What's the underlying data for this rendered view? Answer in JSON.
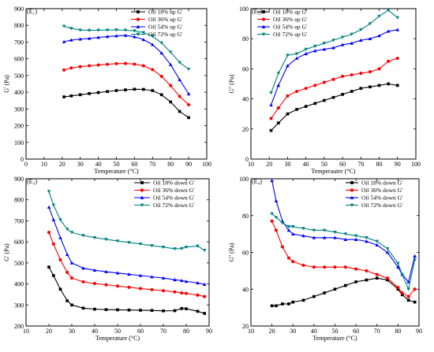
{
  "chart_data": [
    {
      "type": "line",
      "panel_label": "(E₁)",
      "xlabel": "Temperature (°C)",
      "ylabel": "G' (Pa)",
      "xlim": [
        0,
        100
      ],
      "ylim": [
        0,
        900
      ],
      "xticks": [
        0,
        10,
        20,
        30,
        40,
        50,
        60,
        70,
        80,
        90,
        100
      ],
      "yticks": [
        0,
        100,
        200,
        300,
        400,
        500,
        600,
        700,
        800,
        900
      ],
      "legend_position": "top-right",
      "x": [
        21,
        25,
        30,
        35,
        40,
        45,
        50,
        55,
        60,
        65,
        70,
        75,
        80,
        85,
        90
      ],
      "series": [
        {
          "name": "Oil 18% up G'",
          "color": "#000000",
          "marker": "square",
          "values": [
            372,
            378,
            385,
            392,
            398,
            404,
            410,
            414,
            418,
            417,
            410,
            385,
            342,
            285,
            248
          ]
        },
        {
          "name": "Oil 36% up G'",
          "color": "#ff0000",
          "marker": "circle",
          "values": [
            533,
            545,
            553,
            558,
            563,
            567,
            571,
            572,
            568,
            558,
            535,
            495,
            440,
            375,
            325
          ]
        },
        {
          "name": "Oil 54% up G'",
          "color": "#0000ff",
          "marker": "triangle-up",
          "values": [
            702,
            712,
            718,
            722,
            728,
            733,
            737,
            740,
            732,
            715,
            685,
            635,
            565,
            475,
            390
          ]
        },
        {
          "name": "Oil 72% up G'",
          "color": "#008080",
          "marker": "triangle-down",
          "values": [
            795,
            782,
            772,
            770,
            771,
            772,
            773,
            771,
            767,
            757,
            735,
            695,
            640,
            578,
            538
          ]
        }
      ]
    },
    {
      "type": "line",
      "panel_label": "(E₂)",
      "xlabel": "Temperautre (°C)",
      "ylabel": "G'' (Pa)",
      "xlim": [
        10,
        100
      ],
      "ylim": [
        0,
        100
      ],
      "xticks": [
        10,
        20,
        30,
        40,
        50,
        60,
        70,
        80,
        90,
        100
      ],
      "yticks": [
        0,
        20,
        40,
        60,
        80,
        100
      ],
      "legend_position": "top-left",
      "x": [
        21,
        25,
        30,
        35,
        40,
        45,
        50,
        55,
        60,
        65,
        70,
        75,
        80,
        85,
        90
      ],
      "series": [
        {
          "name": "Oil 18% up G'",
          "color": "#000000",
          "marker": "square",
          "values": [
            19,
            24,
            30,
            33,
            35,
            37,
            39,
            41,
            43,
            45,
            47,
            48,
            49,
            50,
            49
          ]
        },
        {
          "name": "Oil 36% up G'",
          "color": "#ff0000",
          "marker": "circle",
          "values": [
            27,
            34,
            42,
            45,
            47,
            49,
            51,
            53,
            55,
            56,
            57,
            58,
            60,
            65,
            67
          ]
        },
        {
          "name": "Oil 54% up G'",
          "color": "#0000ff",
          "marker": "triangle-up",
          "values": [
            36,
            49,
            62,
            67,
            70,
            72,
            73,
            74,
            76,
            77,
            79,
            80,
            82,
            85,
            86
          ]
        },
        {
          "name": "Oil 72% up G'",
          "color": "#008080",
          "marker": "triangle-down",
          "values": [
            44,
            57,
            69,
            70,
            73,
            75,
            77,
            79,
            81,
            83,
            86,
            90,
            95,
            99,
            94
          ]
        }
      ]
    },
    {
      "type": "line",
      "panel_label": "(E₃)",
      "xlabel": "Temperature (°C)",
      "ylabel": "G' (Pa)",
      "xlim": [
        10,
        90
      ],
      "ylim": [
        200,
        900
      ],
      "xticks": [
        10,
        20,
        30,
        40,
        50,
        60,
        70,
        80,
        90
      ],
      "yticks": [
        200,
        300,
        400,
        500,
        600,
        700,
        800,
        900
      ],
      "legend_position": "top-right",
      "x": [
        20,
        22,
        25,
        28,
        30,
        35,
        40,
        45,
        50,
        55,
        60,
        65,
        70,
        75,
        78,
        80,
        85,
        88
      ],
      "series": [
        {
          "name": "Oil 18% down G'",
          "color": "#000000",
          "marker": "square",
          "values": [
            480,
            440,
            375,
            320,
            300,
            285,
            280,
            278,
            277,
            276,
            275,
            274,
            272,
            273,
            283,
            282,
            270,
            260
          ]
        },
        {
          "name": "Oil 36% down G'",
          "color": "#ff0000",
          "marker": "circle",
          "values": [
            645,
            590,
            515,
            455,
            428,
            410,
            402,
            396,
            390,
            384,
            378,
            373,
            368,
            362,
            357,
            355,
            347,
            340
          ]
        },
        {
          "name": "Oil 54% down G'",
          "color": "#0000ff",
          "marker": "triangle-up",
          "values": [
            765,
            705,
            620,
            540,
            500,
            475,
            465,
            458,
            452,
            446,
            440,
            434,
            428,
            420,
            416,
            412,
            405,
            398
          ]
        },
        {
          "name": "Oil 72% down G'",
          "color": "#008080",
          "marker": "triangle-down",
          "values": [
            840,
            775,
            705,
            660,
            645,
            630,
            620,
            612,
            604,
            597,
            590,
            582,
            575,
            567,
            568,
            575,
            580,
            560
          ]
        }
      ]
    },
    {
      "type": "line",
      "panel_label": "(E₄)",
      "xlabel": "Temperature (°C)",
      "ylabel": "G'' (Pa)",
      "xlim": [
        10,
        90
      ],
      "ylim": [
        20,
        100
      ],
      "xticks": [
        10,
        20,
        30,
        40,
        50,
        60,
        70,
        80,
        90
      ],
      "yticks": [
        20,
        40,
        60,
        80,
        100
      ],
      "legend_position": "top-right",
      "x": [
        20,
        22,
        25,
        28,
        30,
        35,
        40,
        45,
        50,
        55,
        60,
        65,
        70,
        75,
        80,
        82,
        85,
        88
      ],
      "series": [
        {
          "name": "Oil 18% down G'",
          "color": "#000000",
          "marker": "square",
          "values": [
            31,
            31,
            32,
            32,
            33,
            34,
            36,
            38,
            40,
            42,
            44,
            45,
            46,
            45,
            40,
            37,
            34,
            33
          ]
        },
        {
          "name": "Oil 36% down G'",
          "color": "#ff0000",
          "marker": "circle",
          "values": [
            77,
            72,
            63,
            57,
            55,
            53,
            52,
            52,
            52,
            52,
            51,
            50,
            48,
            46,
            41,
            38,
            36,
            40
          ]
        },
        {
          "name": "Oil 54% down G'",
          "color": "#0000ff",
          "marker": "triangle-up",
          "values": [
            99,
            88,
            77,
            72,
            70,
            69,
            68,
            68,
            68,
            67,
            67,
            66,
            64,
            60,
            52,
            48,
            44,
            58
          ]
        },
        {
          "name": "Oil 72% down G'",
          "color": "#008080",
          "marker": "triangle-down",
          "values": [
            81,
            79,
            76,
            74,
            74,
            73,
            72,
            72,
            71,
            70,
            69,
            68,
            66,
            62,
            54,
            48,
            40,
            56
          ]
        }
      ]
    }
  ]
}
